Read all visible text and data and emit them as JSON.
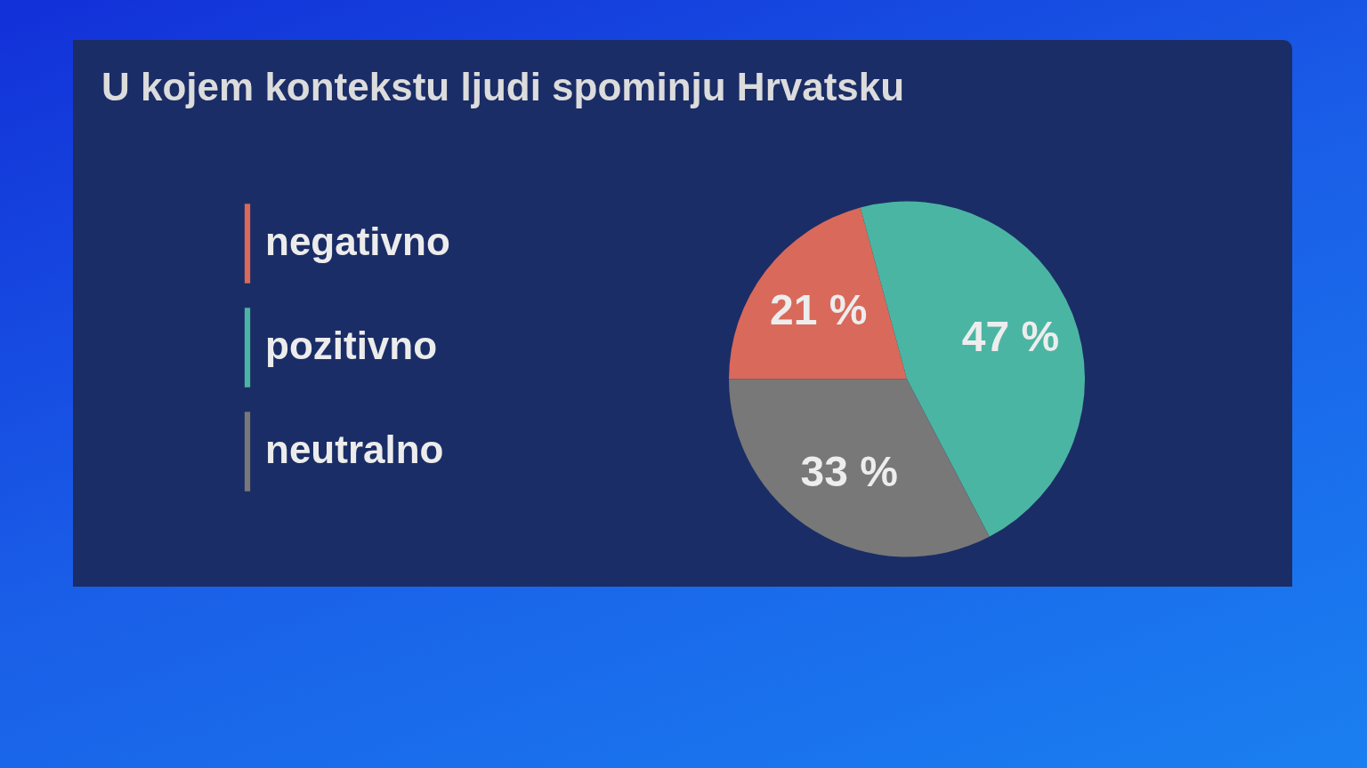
{
  "chart_data": {
    "type": "pie",
    "title": "U kojem kontekstu ljudi spominju Hrvatsku",
    "categories": [
      "negativno",
      "pozitivno",
      "neutralno"
    ],
    "values": [
      21,
      47,
      33
    ],
    "value_labels": [
      "21 %",
      "47 %",
      "33 %"
    ],
    "colors": [
      "#d9695a",
      "#4bb5a3",
      "#787878"
    ],
    "legend": "left"
  }
}
